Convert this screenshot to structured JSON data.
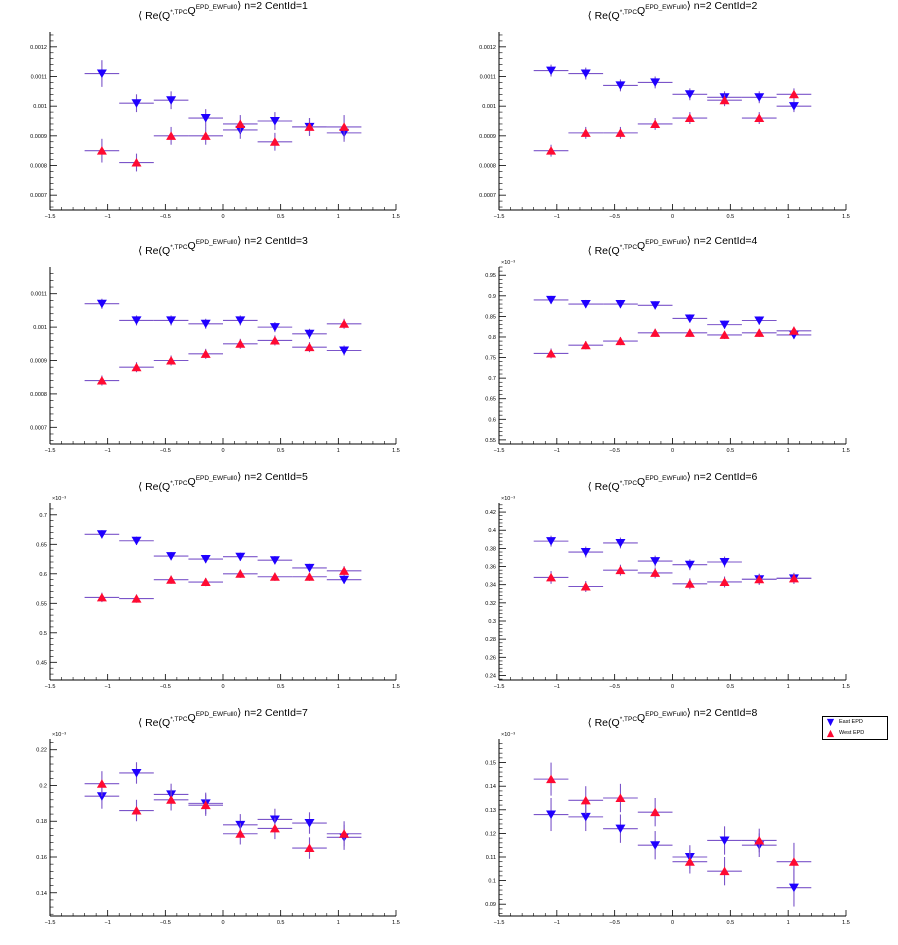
{
  "colors": {
    "east": "#1f00ff",
    "west": "#ff0a32",
    "error_bar": "#7b55c9",
    "axis": "#000000"
  },
  "legend": {
    "entries": [
      {
        "label": "East EPD",
        "marker": "triangle-down",
        "color": "#1f00ff"
      },
      {
        "label": "West EPD",
        "marker": "triangle-up",
        "color": "#ff0a32"
      }
    ],
    "placement": "top-right of panel 8"
  },
  "chart_data": [
    {
      "type": "scatter",
      "title_main": "⟨ Re(Q",
      "title_sup1": "*,TPC",
      "title_mid": "Q",
      "title_sup2": "EPD_EWFull0",
      "title_end": "⟩  n=2  CentId=1",
      "exponent": "",
      "xlim": [
        -1.5,
        1.5
      ],
      "ylim": [
        0.00065,
        0.00125
      ],
      "x_ticks": [
        -1.5,
        -1,
        -0.5,
        0,
        0.5,
        1,
        1.5
      ],
      "x_tick_labels": [
        "−1.5",
        "−1",
        "−0.5",
        "0",
        "0.5",
        "1",
        "1.5"
      ],
      "y_ticks": [
        0.0007,
        0.0008,
        0.0009,
        0.001,
        0.0011,
        0.0012
      ],
      "y_tick_labels": [
        "0.0007",
        "0.0008",
        "0.0009",
        "0.001",
        "0.0011",
        "0.0012"
      ],
      "x_halfwidth": 0.15,
      "x": [
        -1.05,
        -0.75,
        -0.45,
        -0.15,
        0.15,
        0.45,
        0.75,
        1.05
      ],
      "series": [
        {
          "name": "East EPD",
          "values": [
            0.00111,
            0.00101,
            0.00102,
            0.00096,
            0.00092,
            0.00095,
            0.00093,
            0.00091
          ],
          "errors": [
            4.5e-05,
            3e-05,
            3e-05,
            3e-05,
            3e-05,
            3e-05,
            3e-05,
            3e-05
          ]
        },
        {
          "name": "West EPD",
          "values": [
            0.00085,
            0.00081,
            0.0009,
            0.0009,
            0.00094,
            0.00088,
            0.00093,
            0.00093
          ],
          "errors": [
            4e-05,
            3e-05,
            3e-05,
            3e-05,
            3e-05,
            3e-05,
            3e-05,
            4e-05
          ]
        }
      ]
    },
    {
      "type": "scatter",
      "title_main": "⟨ Re(Q",
      "title_sup1": "*,TPC",
      "title_mid": "Q",
      "title_sup2": "EPD_EWFull0",
      "title_end": "⟩  n=2  CentId=2",
      "exponent": "",
      "xlim": [
        -1.5,
        1.5
      ],
      "ylim": [
        0.00065,
        0.00125
      ],
      "x_ticks": [
        -1.5,
        -1,
        -0.5,
        0,
        0.5,
        1,
        1.5
      ],
      "x_tick_labels": [
        "−1.5",
        "−1",
        "−0.5",
        "0",
        "0.5",
        "1",
        "1.5"
      ],
      "y_ticks": [
        0.0007,
        0.0008,
        0.0009,
        0.001,
        0.0011,
        0.0012
      ],
      "y_tick_labels": [
        "0.0007",
        "0.0008",
        "0.0009",
        "0.001",
        "0.0011",
        "0.0012"
      ],
      "x_halfwidth": 0.15,
      "x": [
        -1.05,
        -0.75,
        -0.45,
        -0.15,
        0.15,
        0.45,
        0.75,
        1.05
      ],
      "series": [
        {
          "name": "East EPD",
          "values": [
            0.00112,
            0.00111,
            0.00107,
            0.00108,
            0.00104,
            0.00103,
            0.00103,
            0.001
          ],
          "errors": [
            2e-05,
            2e-05,
            2e-05,
            2e-05,
            2e-05,
            2e-05,
            2e-05,
            2e-05
          ]
        },
        {
          "name": "West EPD",
          "values": [
            0.00085,
            0.00091,
            0.00091,
            0.00094,
            0.00096,
            0.00102,
            0.00096,
            0.00104
          ],
          "errors": [
            2e-05,
            2e-05,
            2e-05,
            2e-05,
            2e-05,
            2e-05,
            2e-05,
            2e-05
          ]
        }
      ]
    },
    {
      "type": "scatter",
      "title_main": "⟨ Re(Q",
      "title_sup1": "*,TPC",
      "title_mid": "Q",
      "title_sup2": "EPD_EWFull0",
      "title_end": "⟩  n=2  CentId=3",
      "exponent": "",
      "xlim": [
        -1.5,
        1.5
      ],
      "ylim": [
        0.00065,
        0.00118
      ],
      "x_ticks": [
        -1.5,
        -1,
        -0.5,
        0,
        0.5,
        1,
        1.5
      ],
      "x_tick_labels": [
        "−1.5",
        "−1",
        "−0.5",
        "0",
        "0.5",
        "1",
        "1.5"
      ],
      "y_ticks": [
        0.0007,
        0.0008,
        0.0009,
        0.001,
        0.0011
      ],
      "y_tick_labels": [
        "0.0007",
        "0.0008",
        "0.0009",
        "0.001",
        "0.0011"
      ],
      "x_halfwidth": 0.15,
      "x": [
        -1.05,
        -0.75,
        -0.45,
        -0.15,
        0.15,
        0.45,
        0.75,
        1.05
      ],
      "series": [
        {
          "name": "East EPD",
          "values": [
            0.00107,
            0.00102,
            0.00102,
            0.00101,
            0.00102,
            0.001,
            0.00098,
            0.00093
          ],
          "errors": [
            1.5e-05,
            1.5e-05,
            1.5e-05,
            1.5e-05,
            1.5e-05,
            1.5e-05,
            1.5e-05,
            1.5e-05
          ]
        },
        {
          "name": "West EPD",
          "values": [
            0.00084,
            0.00088,
            0.0009,
            0.00092,
            0.00095,
            0.00096,
            0.00094,
            0.00101
          ],
          "errors": [
            1.5e-05,
            1.5e-05,
            1.5e-05,
            1.5e-05,
            1.5e-05,
            1.5e-05,
            1.5e-05,
            1.5e-05
          ]
        }
      ]
    },
    {
      "type": "scatter",
      "title_main": "⟨ Re(Q",
      "title_sup1": "*,TPC",
      "title_mid": "Q",
      "title_sup2": "EPD_EWFull0",
      "title_end": "⟩  n=2  CentId=4",
      "exponent": "×10⁻³",
      "xlim": [
        -1.5,
        1.5
      ],
      "ylim": [
        0.54,
        0.97
      ],
      "x_ticks": [
        -1.5,
        -1,
        -0.5,
        0,
        0.5,
        1,
        1.5
      ],
      "x_tick_labels": [
        "−1.5",
        "−1",
        "−0.5",
        "0",
        "0.5",
        "1",
        "1.5"
      ],
      "y_ticks": [
        0.55,
        0.6,
        0.65,
        0.7,
        0.75,
        0.8,
        0.85,
        0.9,
        0.95
      ],
      "y_tick_labels": [
        "0.55",
        "0.6",
        "0.65",
        "0.7",
        "0.75",
        "0.8",
        "0.85",
        "0.9",
        "0.95"
      ],
      "x_halfwidth": 0.15,
      "x": [
        -1.05,
        -0.75,
        -0.45,
        -0.15,
        0.15,
        0.45,
        0.75,
        1.05
      ],
      "series": [
        {
          "name": "East EPD",
          "values": [
            0.89,
            0.88,
            0.88,
            0.877,
            0.845,
            0.83,
            0.84,
            0.805
          ],
          "errors": [
            0.01,
            0.01,
            0.01,
            0.01,
            0.01,
            0.01,
            0.01,
            0.01
          ]
        },
        {
          "name": "West EPD",
          "values": [
            0.76,
            0.78,
            0.79,
            0.81,
            0.81,
            0.805,
            0.81,
            0.815
          ],
          "errors": [
            0.012,
            0.01,
            0.01,
            0.01,
            0.01,
            0.01,
            0.01,
            0.01
          ]
        }
      ]
    },
    {
      "type": "scatter",
      "title_main": "⟨ Re(Q",
      "title_sup1": "*,TPC",
      "title_mid": "Q",
      "title_sup2": "EPD_EWFull0",
      "title_end": "⟩  n=2  CentId=5",
      "exponent": "×10⁻³",
      "xlim": [
        -1.5,
        1.5
      ],
      "ylim": [
        0.42,
        0.72
      ],
      "x_ticks": [
        -1.5,
        -1,
        -0.5,
        0,
        0.5,
        1,
        1.5
      ],
      "x_tick_labels": [
        "−1.5",
        "−1",
        "−0.5",
        "0",
        "0.5",
        "1",
        "1.5"
      ],
      "y_ticks": [
        0.45,
        0.5,
        0.55,
        0.6,
        0.65,
        0.7
      ],
      "y_tick_labels": [
        "0.45",
        "0.5",
        "0.55",
        "0.6",
        "0.65",
        "0.7"
      ],
      "x_halfwidth": 0.15,
      "x": [
        -1.05,
        -0.75,
        -0.45,
        -0.15,
        0.15,
        0.45,
        0.75,
        1.05
      ],
      "series": [
        {
          "name": "East EPD",
          "values": [
            0.667,
            0.656,
            0.63,
            0.625,
            0.629,
            0.623,
            0.61,
            0.59
          ],
          "errors": [
            0.007,
            0.007,
            0.007,
            0.007,
            0.007,
            0.007,
            0.007,
            0.007
          ]
        },
        {
          "name": "West EPD",
          "values": [
            0.56,
            0.558,
            0.59,
            0.586,
            0.6,
            0.595,
            0.595,
            0.605
          ],
          "errors": [
            0.008,
            0.007,
            0.007,
            0.007,
            0.007,
            0.007,
            0.007,
            0.008
          ]
        }
      ]
    },
    {
      "type": "scatter",
      "title_main": "⟨ Re(Q",
      "title_sup1": "*,TPC",
      "title_mid": "Q",
      "title_sup2": "EPD_EWFull0",
      "title_end": "⟩  n=2  CentId=6",
      "exponent": "×10⁻³",
      "xlim": [
        -1.5,
        1.5
      ],
      "ylim": [
        0.235,
        0.43
      ],
      "x_ticks": [
        -1.5,
        -1,
        -0.5,
        0,
        0.5,
        1,
        1.5
      ],
      "x_tick_labels": [
        "−1.5",
        "−1",
        "−0.5",
        "0",
        "0.5",
        "1",
        "1.5"
      ],
      "y_ticks": [
        0.24,
        0.26,
        0.28,
        0.3,
        0.32,
        0.34,
        0.36,
        0.38,
        0.4,
        0.42
      ],
      "y_tick_labels": [
        "0.24",
        "0.26",
        "0.28",
        "0.3",
        "0.32",
        "0.34",
        "0.36",
        "0.38",
        "0.4",
        "0.42"
      ],
      "x_halfwidth": 0.15,
      "x": [
        -1.05,
        -0.75,
        -0.45,
        -0.15,
        0.15,
        0.45,
        0.75,
        1.05
      ],
      "series": [
        {
          "name": "East EPD",
          "values": [
            0.388,
            0.376,
            0.386,
            0.366,
            0.362,
            0.365,
            0.346,
            0.347
          ],
          "errors": [
            0.006,
            0.006,
            0.006,
            0.006,
            0.006,
            0.006,
            0.006,
            0.006
          ]
        },
        {
          "name": "West EPD",
          "values": [
            0.348,
            0.338,
            0.356,
            0.353,
            0.341,
            0.343,
            0.346,
            0.347
          ],
          "errors": [
            0.007,
            0.006,
            0.006,
            0.006,
            0.006,
            0.006,
            0.006,
            0.006
          ]
        }
      ]
    },
    {
      "type": "scatter",
      "title_main": "⟨ Re(Q",
      "title_sup1": "*,TPC",
      "title_mid": "Q",
      "title_sup2": "EPD_EWFull0",
      "title_end": "⟩  n=2  CentId=7",
      "exponent": "×10⁻³",
      "xlim": [
        -1.5,
        1.5
      ],
      "ylim": [
        0.127,
        0.226
      ],
      "x_ticks": [
        -1.5,
        -1,
        -0.5,
        0,
        0.5,
        1,
        1.5
      ],
      "x_tick_labels": [
        "−1.5",
        "−1",
        "−0.5",
        "0",
        "0.5",
        "1",
        "1.5"
      ],
      "y_ticks": [
        0.14,
        0.16,
        0.18,
        0.2,
        0.22
      ],
      "y_tick_labels": [
        "0.14",
        "0.16",
        "0.18",
        "0.2",
        "0.22"
      ],
      "x_halfwidth": 0.15,
      "x": [
        -1.05,
        -0.75,
        -0.45,
        -0.15,
        0.15,
        0.45,
        0.75,
        1.05
      ],
      "series": [
        {
          "name": "East EPD",
          "values": [
            0.194,
            0.207,
            0.195,
            0.19,
            0.178,
            0.181,
            0.179,
            0.171
          ],
          "errors": [
            0.007,
            0.006,
            0.006,
            0.006,
            0.006,
            0.006,
            0.006,
            0.007
          ]
        },
        {
          "name": "West EPD",
          "values": [
            0.201,
            0.186,
            0.192,
            0.189,
            0.173,
            0.176,
            0.165,
            0.173
          ],
          "errors": [
            0.007,
            0.006,
            0.006,
            0.006,
            0.006,
            0.006,
            0.006,
            0.007
          ]
        }
      ]
    },
    {
      "type": "scatter",
      "title_main": "⟨ Re(Q",
      "title_sup1": "*,TPC",
      "title_mid": "Q",
      "title_sup2": "EPD_EWFull0",
      "title_end": "⟩  n=2  CentId=8",
      "exponent": "×10⁻³",
      "xlim": [
        -1.5,
        1.5
      ],
      "ylim": [
        0.085,
        0.16
      ],
      "x_ticks": [
        -1.5,
        -1,
        -0.5,
        0,
        0.5,
        1,
        1.5
      ],
      "x_tick_labels": [
        "−1.5",
        "−1",
        "−0.5",
        "0",
        "0.5",
        "1",
        "1.5"
      ],
      "y_ticks": [
        0.09,
        0.1,
        0.11,
        0.12,
        0.13,
        0.14,
        0.15
      ],
      "y_tick_labels": [
        "0.09",
        "0.1",
        "0.11",
        "0.12",
        "0.13",
        "0.14",
        "0.15"
      ],
      "x_halfwidth": 0.15,
      "x": [
        -1.05,
        -0.75,
        -0.45,
        -0.15,
        0.15,
        0.45,
        0.75,
        1.05
      ],
      "series": [
        {
          "name": "East EPD",
          "values": [
            0.128,
            0.127,
            0.122,
            0.115,
            0.11,
            0.117,
            0.115,
            0.097
          ],
          "errors": [
            0.007,
            0.006,
            0.006,
            0.006,
            0.005,
            0.006,
            0.005,
            0.008
          ]
        },
        {
          "name": "West EPD",
          "values": [
            0.143,
            0.134,
            0.135,
            0.129,
            0.108,
            0.104,
            0.117,
            0.108
          ],
          "errors": [
            0.007,
            0.006,
            0.006,
            0.006,
            0.005,
            0.006,
            0.005,
            0.008
          ]
        }
      ]
    }
  ]
}
